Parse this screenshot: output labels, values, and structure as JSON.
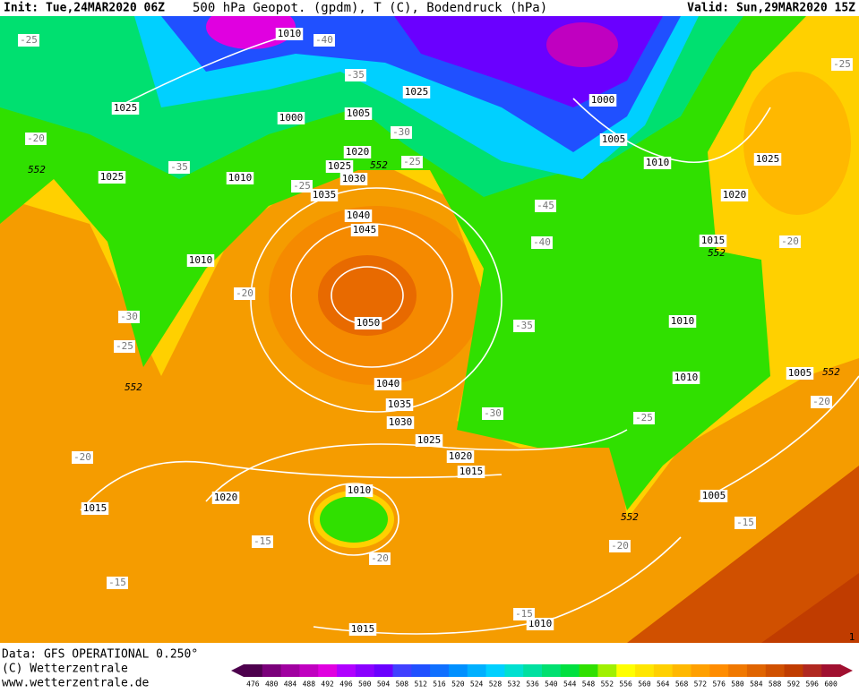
{
  "header": {
    "init": "Init: Tue,24MAR2020 06Z",
    "title": "500 hPa Geopot. (gpdm), T (C), Bodendruck (hPa)",
    "valid": "Valid: Sun,29MAR2020 15Z"
  },
  "map": {
    "isobar_labels": [
      "1010",
      "1025",
      "1000",
      "1005",
      "1025",
      "1000",
      "1005",
      "1010",
      "1025",
      "1020",
      "1015",
      "1020",
      "1025",
      "1030",
      "1010",
      "1025",
      "1035",
      "1040",
      "1045",
      "1010",
      "1050",
      "1010",
      "1010",
      "1040",
      "1035",
      "1030",
      "1025",
      "1020",
      "1015",
      "1010",
      "1020",
      "1015",
      "1005",
      "1005",
      "1010",
      "1015"
    ],
    "temperature_labels": [
      "-25",
      "-40",
      "-35",
      "-30",
      "-25",
      "-25",
      "-35",
      "-20",
      "-25",
      "-45",
      "-40",
      "-20",
      "-20",
      "-30",
      "-25",
      "-35",
      "-30",
      "-25",
      "-20",
      "-20",
      "-15",
      "-20",
      "-20",
      "-15",
      "-15",
      "-15"
    ],
    "contour_552_labels": [
      "552",
      "552",
      "552",
      "552",
      "552",
      "552"
    ],
    "corner_label": "1"
  },
  "footer": {
    "data": "Data: GFS OPERATIONAL 0.250°",
    "copyright": "(C) Wetterzentrale",
    "url": "www.wetterzentrale.de"
  },
  "colorbar": {
    "labels": [
      "476",
      "480",
      "484",
      "488",
      "492",
      "496",
      "500",
      "504",
      "508",
      "512",
      "516",
      "520",
      "524",
      "528",
      "532",
      "536",
      "540",
      "544",
      "548",
      "552",
      "556",
      "560",
      "564",
      "568",
      "572",
      "576",
      "580",
      "584",
      "588",
      "592",
      "596",
      "600"
    ],
    "colors": [
      "#4d004d",
      "#7a007a",
      "#a000a0",
      "#c000c0",
      "#e000e0",
      "#b000ff",
      "#8a00ff",
      "#6a00ff",
      "#4040ff",
      "#2050ff",
      "#1070ff",
      "#0090ff",
      "#00b0ff",
      "#00d0ff",
      "#00e0d0",
      "#00e0a0",
      "#00e070",
      "#00e040",
      "#30e000",
      "#a0f000",
      "#ffff00",
      "#ffe600",
      "#ffd000",
      "#ffb800",
      "#ffa000",
      "#ff8c00",
      "#f07800",
      "#e06400",
      "#d05000",
      "#c03c00",
      "#b02820",
      "#a01030"
    ]
  }
}
